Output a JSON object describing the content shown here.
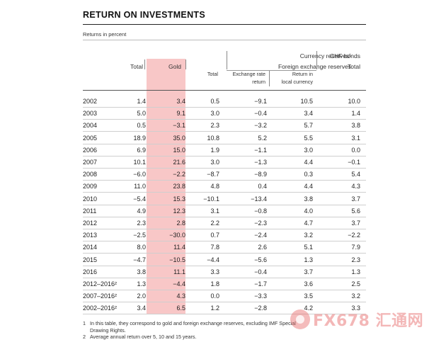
{
  "title": "RETURN ON INVESTMENTS",
  "subtitle": "Returns in percent",
  "headers": {
    "total": "Total",
    "gold": "Gold",
    "currency_reserves": "Currency reserves¹",
    "foreign_exchange_reserves": "Foreign exchange reserves",
    "fx_total": "Total",
    "exchange_rate_l1": "Exchange rate",
    "exchange_rate_l2": "return",
    "local_currency_l1": "Return in",
    "local_currency_l2": "local currency",
    "chf_bonds": "CHF bonds",
    "chf_total": "Total"
  },
  "rows": [
    [
      "2002",
      "1.4",
      "3.4",
      "0.5",
      "−9.1",
      "10.5",
      "10.0"
    ],
    [
      "2003",
      "5.0",
      "9.1",
      "3.0",
      "−0.4",
      "3.4",
      "1.4"
    ],
    [
      "2004",
      "0.5",
      "−3.1",
      "2.3",
      "−3.2",
      "5.7",
      "3.8"
    ],
    [
      "2005",
      "18.9",
      "35.0",
      "10.8",
      "5.2",
      "5.5",
      "3.1"
    ],
    [
      "2006",
      "6.9",
      "15.0",
      "1.9",
      "−1.1",
      "3.0",
      "0.0"
    ],
    [
      "2007",
      "10.1",
      "21.6",
      "3.0",
      "−1.3",
      "4.4",
      "−0.1"
    ],
    [
      "2008",
      "−6.0",
      "−2.2",
      "−8.7",
      "−8.9",
      "0.3",
      "5.4"
    ],
    [
      "2009",
      "11.0",
      "23.8",
      "4.8",
      "0.4",
      "4.4",
      "4.3"
    ],
    [
      "2010",
      "−5.4",
      "15.3",
      "−10.1",
      "−13.4",
      "3.8",
      "3.7"
    ],
    [
      "2011",
      "4.9",
      "12.3",
      "3.1",
      "−0.8",
      "4.0",
      "5.6"
    ],
    [
      "2012",
      "2.3",
      "2.8",
      "2.2",
      "−2.3",
      "4.7",
      "3.7"
    ],
    [
      "2013",
      "−2.5",
      "−30.0",
      "0.7",
      "−2.4",
      "3.2",
      "−2.2"
    ],
    [
      "2014",
      "8.0",
      "11.4",
      "7.8",
      "2.6",
      "5.1",
      "7.9"
    ],
    [
      "2015",
      "−4.7",
      "−10.5",
      "−4.4",
      "−5.6",
      "1.3",
      "2.3"
    ],
    [
      "2016",
      "3.8",
      "11.1",
      "3.3",
      "−0.4",
      "3.7",
      "1.3"
    ],
    [
      "2012–2016²",
      "1.3",
      "−4.4",
      "1.8",
      "−1.7",
      "3.6",
      "2.5"
    ],
    [
      "2007–2016²",
      "2.0",
      "4.3",
      "0.0",
      "−3.3",
      "3.5",
      "3.2"
    ],
    [
      "2002–2016²",
      "3.4",
      "6.5",
      "1.2",
      "−2.8",
      "4.2",
      "3.3"
    ]
  ],
  "footnotes": {
    "n1": "1",
    "n1_line1": "In this table, they correspond to gold and foreign exchange reserves, excluding IMF Special",
    "n1_line2": "Drawing Rights.",
    "n2": "2",
    "n2_text": "Average annual return over 5, 10 and 15 years."
  },
  "watermark": {
    "text": "FX678 汇通网",
    "icon": "fx678-logo-icon"
  },
  "colors": {
    "gold_highlight": "#f8c7c7",
    "watermark": "#f0a0a0"
  }
}
